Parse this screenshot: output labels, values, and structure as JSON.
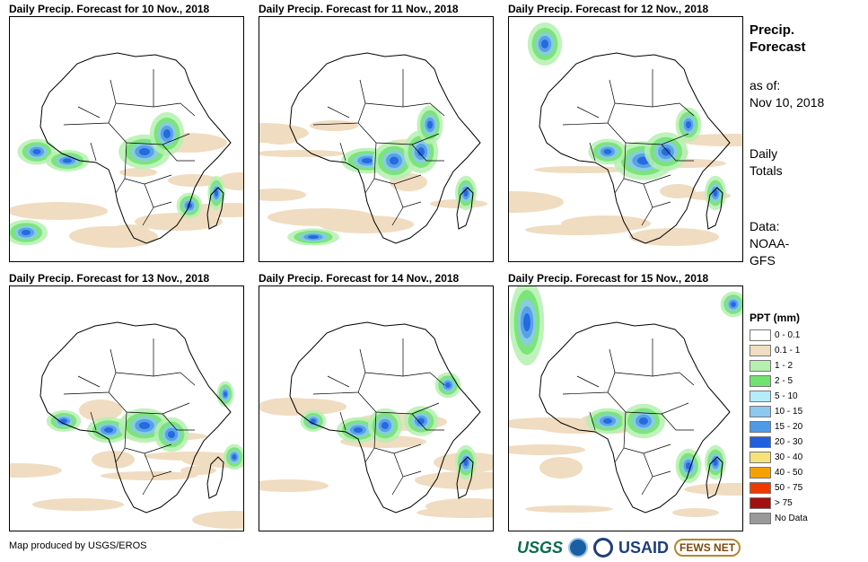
{
  "panels": [
    {
      "title": "Daily Precip. Forecast for 10 Nov., 2018"
    },
    {
      "title": "Daily Precip. Forecast for 11 Nov., 2018"
    },
    {
      "title": "Daily Precip. Forecast for 12 Nov., 2018"
    },
    {
      "title": "Daily Precip. Forecast for 13 Nov., 2018"
    },
    {
      "title": "Daily Precip. Forecast for 14 Nov., 2018"
    },
    {
      "title": "Daily Precip. Forecast for 15 Nov., 2018"
    }
  ],
  "info": {
    "title_line1": "Precip.",
    "title_line2": "Forecast",
    "asof_label": "as of:",
    "asof_date": "Nov 10, 2018",
    "totals_line1": "Daily",
    "totals_line2": "Totals",
    "data_label": "Data:",
    "data_source_line1": "NOAA-",
    "data_source_line2": "GFS"
  },
  "legend": {
    "title": "PPT (mm)",
    "items": [
      {
        "label": "0 - 0.1",
        "color": "#ffffff"
      },
      {
        "label": "0.1 - 1",
        "color": "#f0dcc0"
      },
      {
        "label": "1 - 2",
        "color": "#b5f0b0"
      },
      {
        "label": "2 - 5",
        "color": "#6fe36f"
      },
      {
        "label": "5 - 10",
        "color": "#b4ecf8"
      },
      {
        "label": "10 - 15",
        "color": "#8cc8f0"
      },
      {
        "label": "15 - 20",
        "color": "#4f9ae8"
      },
      {
        "label": "20 - 30",
        "color": "#1f5fe0"
      },
      {
        "label": "30 - 40",
        "color": "#f7e27a"
      },
      {
        "label": "40 - 50",
        "color": "#f5a200"
      },
      {
        "label": "50 - 75",
        "color": "#ee3a00"
      },
      {
        "label": "> 75",
        "color": "#a41010"
      },
      {
        "label": "No Data",
        "color": "#999999"
      }
    ]
  },
  "footer": {
    "credit": "Map produced by USGS/EROS",
    "logo_usgs": "USGS",
    "logo_usaid": "USAID",
    "logo_fews": "FEWS NET"
  }
}
